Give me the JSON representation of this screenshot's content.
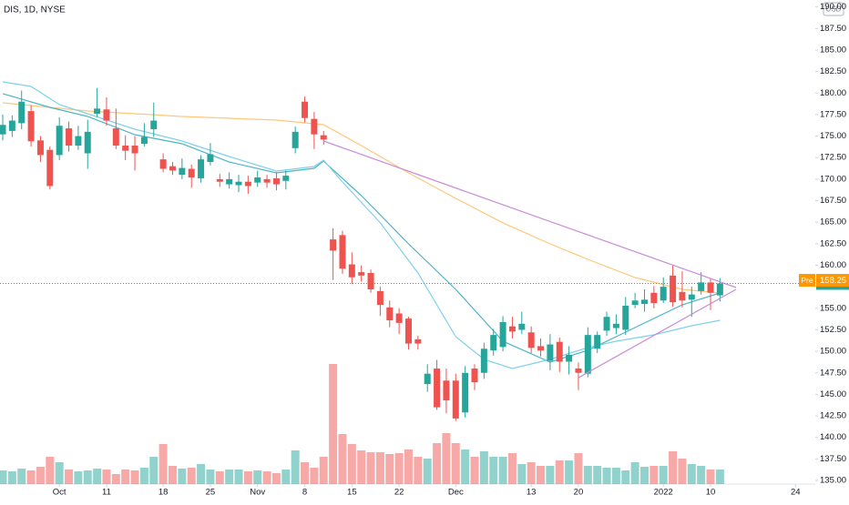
{
  "chart_data": {
    "type": "candlestick",
    "title": "DIS, 1D, NYSE",
    "currency": "USD",
    "up_color": "#26a69a",
    "down_color": "#ef5350",
    "ylim": [
      134.58,
      190.81
    ],
    "yticks": [
      {
        "value": 135,
        "label": "135.00"
      },
      {
        "value": 137.5,
        "label": "137.50"
      },
      {
        "value": 140,
        "label": "140.00"
      },
      {
        "value": 142.5,
        "label": "142.50"
      },
      {
        "value": 145,
        "label": "145.00"
      },
      {
        "value": 147.5,
        "label": "147.50"
      },
      {
        "value": 150,
        "label": "150.00"
      },
      {
        "value": 152.5,
        "label": "152.50"
      },
      {
        "value": 155,
        "label": "155.00"
      },
      {
        "value": 157.5,
        "label": "157.50"
      },
      {
        "value": 160,
        "label": "160.00"
      },
      {
        "value": 162.5,
        "label": "162.50"
      },
      {
        "value": 165,
        "label": "165.00"
      },
      {
        "value": 167.5,
        "label": "167.50"
      },
      {
        "value": 170,
        "label": "170.00"
      },
      {
        "value": 172.5,
        "label": "172.50"
      },
      {
        "value": 175,
        "label": "175.00"
      },
      {
        "value": 177.5,
        "label": "177.50"
      },
      {
        "value": 180,
        "label": "180.00"
      },
      {
        "value": 182.5,
        "label": "182.50"
      },
      {
        "value": 185,
        "label": "185.00"
      },
      {
        "value": 187.5,
        "label": "187.50"
      },
      {
        "value": 190,
        "label": "190.00"
      }
    ],
    "xlim": [
      -0.29,
      86.1
    ],
    "xticks": [
      {
        "value": 6,
        "label": "Oct"
      },
      {
        "value": 11,
        "label": "11"
      },
      {
        "value": 17,
        "label": "18"
      },
      {
        "value": 22,
        "label": "25"
      },
      {
        "value": 27,
        "label": "Nov"
      },
      {
        "value": 32,
        "label": "8"
      },
      {
        "value": 37,
        "label": "15"
      },
      {
        "value": 42,
        "label": "22"
      },
      {
        "value": 48,
        "label": "Dec"
      },
      {
        "value": 56,
        "label": "13"
      },
      {
        "value": 61,
        "label": "20"
      },
      {
        "value": 70,
        "label": "2022"
      },
      {
        "value": 75,
        "label": "10"
      },
      {
        "value": 84,
        "label": "24"
      }
    ],
    "grid": false,
    "open": [
      175.2,
      175.6,
      176.5,
      177.9,
      174.5,
      173.4,
      172.8,
      175.9,
      173.9,
      173.0,
      177.6,
      178.1,
      175.9,
      173.9,
      173.9,
      174.1,
      175.8,
      172.3,
      171.5,
      170.5,
      171.2,
      170.1,
      172.0,
      170.0,
      169.4,
      169.3,
      169.7,
      169.6,
      170.0,
      170.1,
      169.8,
      173.6,
      179.0,
      177.0,
      175.1,
      163.0,
      163.5,
      160.1,
      159.2,
      159.1,
      157.0,
      155.1,
      154.4,
      153.8,
      151.4,
      146.2,
      148.0,
      146.6,
      146.6,
      142.9,
      148.0,
      147.5,
      150.1,
      150.5,
      152.9,
      152.5,
      152.2,
      150.6,
      148.9,
      151.1,
      148.8,
      148.0,
      147.4,
      150.3,
      152.4,
      152.7,
      152.5,
      155.4,
      155.5,
      156.8,
      155.9,
      158.8,
      156.9,
      156.0,
      157.0,
      158.0,
      156.5
    ],
    "high": [
      177.5,
      177.4,
      180.3,
      178.6,
      175.0,
      173.8,
      177.2,
      176.7,
      176.2,
      176.9,
      180.6,
      179.5,
      178.2,
      175.1,
      175.0,
      176.5,
      178.9,
      173.0,
      172.0,
      172.4,
      171.7,
      172.8,
      174.2,
      170.6,
      170.8,
      170.5,
      170.4,
      171.0,
      170.5,
      170.8,
      171.0,
      176.1,
      179.6,
      177.8,
      175.6,
      164.3,
      164.0,
      161.5,
      160.0,
      159.5,
      157.5,
      155.9,
      155.0,
      154.0,
      151.8,
      148.5,
      149.0,
      148.0,
      147.4,
      148.3,
      148.5,
      151.0,
      152.6,
      154.1,
      154.0,
      154.6,
      152.9,
      151.5,
      152.0,
      151.6,
      150.6,
      148.7,
      152.8,
      152.3,
      154.6,
      154.3,
      156.3,
      156.8,
      157.2,
      157.6,
      158.6,
      160.0,
      159.3,
      157.5,
      159.2,
      158.5,
      158.5
    ],
    "low": [
      174.5,
      174.9,
      175.8,
      173.8,
      172.0,
      168.8,
      172.2,
      173.2,
      173.4,
      171.2,
      177.2,
      176.2,
      173.5,
      172.2,
      171.0,
      173.8,
      174.9,
      170.8,
      170.5,
      170.0,
      169.0,
      169.6,
      171.6,
      169.1,
      168.9,
      168.5,
      168.3,
      169.1,
      169.0,
      168.7,
      168.8,
      173.0,
      176.6,
      173.5,
      174.0,
      158.3,
      159.0,
      157.8,
      158.1,
      156.8,
      154.1,
      152.8,
      152.0,
      150.2,
      150.2,
      145.3,
      143.2,
      142.8,
      141.9,
      142.3,
      145.5,
      146.8,
      149.5,
      150.0,
      151.5,
      152.0,
      149.8,
      149.4,
      147.8,
      147.6,
      147.3,
      145.5,
      147.0,
      149.8,
      151.8,
      152.0,
      151.9,
      155.0,
      154.6,
      155.0,
      155.6,
      155.2,
      155.1,
      154.0,
      156.6,
      154.8,
      155.8
    ],
    "close": [
      176.3,
      176.8,
      179.0,
      174.4,
      172.8,
      169.2,
      176.2,
      173.9,
      175.0,
      175.5,
      178.2,
      176.8,
      173.9,
      173.3,
      173.0,
      174.9,
      176.8,
      171.2,
      171.0,
      171.3,
      170.2,
      172.3,
      172.9,
      169.7,
      170.0,
      169.7,
      169.2,
      170.2,
      169.6,
      169.4,
      170.4,
      175.5,
      177.1,
      175.2,
      174.6,
      161.7,
      159.6,
      158.6,
      158.8,
      157.2,
      155.4,
      153.6,
      153.3,
      150.9,
      150.9,
      147.4,
      143.5,
      144.3,
      142.2,
      147.5,
      146.4,
      150.3,
      151.9,
      153.4,
      152.3,
      153.2,
      150.4,
      150.1,
      150.8,
      148.8,
      149.6,
      147.5,
      151.9,
      151.9,
      154.0,
      153.2,
      155.3,
      155.9,
      156.0,
      155.6,
      157.5,
      155.7,
      155.9,
      156.6,
      158.0,
      156.8,
      157.89
    ],
    "volume": [
      6.0,
      5.6,
      6.8,
      6.0,
      7.6,
      12.0,
      9.6,
      6.4,
      5.6,
      6.0,
      6.8,
      6.4,
      4.4,
      6.4,
      6.0,
      7.2,
      12.0,
      17.6,
      8.0,
      6.8,
      7.2,
      8.8,
      6.4,
      5.6,
      6.4,
      6.4,
      5.6,
      6.0,
      5.6,
      4.8,
      6.4,
      14.8,
      9.6,
      7.2,
      12.0,
      52.8,
      22.0,
      17.6,
      14.8,
      14.0,
      14.0,
      13.2,
      13.6,
      15.2,
      12.0,
      11.2,
      18.0,
      22.4,
      18.0,
      15.2,
      12.0,
      14.4,
      12.0,
      12.0,
      13.6,
      8.8,
      9.6,
      8.0,
      8.0,
      10.4,
      10.4,
      13.6,
      8.0,
      8.0,
      7.2,
      7.2,
      6.0,
      9.6,
      7.6,
      8.0,
      8.0,
      14.4,
      11.2,
      8.8,
      8.0,
      6.4,
      6.4
    ],
    "lines": [
      {
        "color": "#ffc77a",
        "x": [
          0,
          9,
          19,
          29,
          34,
          38,
          43,
          48,
          53,
          58,
          62,
          67,
          72,
          76
        ],
        "values": [
          178.87,
          177.92,
          177.28,
          176.86,
          176.33,
          173.9,
          170.73,
          167.77,
          164.92,
          162.48,
          160.69,
          158.57,
          157.2,
          156.78
        ]
      },
      {
        "color": "#4cb3c9",
        "x": [
          0,
          5,
          9,
          14,
          19,
          24,
          29,
          33,
          34,
          38,
          43,
          48,
          53,
          58,
          62,
          67,
          72,
          76
        ],
        "values": [
          179.93,
          178.34,
          177.28,
          175.17,
          174.11,
          172.0,
          170.73,
          171.26,
          172.1,
          168.09,
          162.48,
          157.2,
          151.17,
          148.74,
          150.12,
          152.76,
          155.4,
          156.78
        ]
      },
      {
        "color": "#7fd0ea",
        "x": [
          0,
          3,
          6,
          9,
          14,
          19,
          24,
          29,
          33,
          34,
          36,
          40,
          44,
          48,
          51,
          54,
          58,
          62,
          65,
          69,
          73,
          76
        ],
        "values": [
          181.3,
          180.77,
          178.66,
          177.6,
          175.8,
          174.43,
          172.63,
          170.94,
          171.47,
          172.21,
          169.67,
          164.92,
          159.1,
          151.7,
          149.06,
          148.0,
          149.06,
          150.43,
          151.17,
          151.91,
          152.97,
          153.6
        ]
      }
    ],
    "drawings": [
      {
        "color": "#c98ad8",
        "x": [
          34,
          77.7
        ],
        "values": [
          174.43,
          157.41
        ]
      },
      {
        "color": "#c98ad8",
        "x": [
          61,
          77.7
        ],
        "values": [
          146.94,
          157.2
        ]
      }
    ],
    "last_price": 157.89,
    "premarket": {
      "label": "Pre",
      "value": 158.25,
      "color": "#ff9800"
    }
  }
}
